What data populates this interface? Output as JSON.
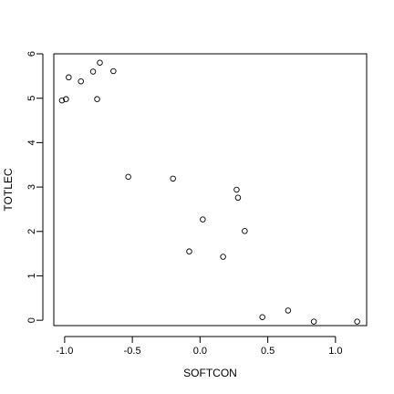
{
  "chart_data": {
    "type": "scatter",
    "title": "",
    "xlabel": "SOFTCON",
    "ylabel": "TOTLEC",
    "xlim": [
      -1.08,
      1.23
    ],
    "ylim": [
      -0.12,
      6.0
    ],
    "xticks": [
      -1.0,
      -0.5,
      0.0,
      0.5,
      1.0
    ],
    "xtick_labels": [
      "-1.0",
      "-0.5",
      "0.0",
      "0.5",
      "1.0"
    ],
    "yticks": [
      0,
      1,
      2,
      3,
      4,
      5,
      6
    ],
    "ytick_labels": [
      "0",
      "1",
      "2",
      "3",
      "4",
      "5",
      "6"
    ],
    "grid": false,
    "marker": "open-circle",
    "colors": {
      "points": "#000000",
      "axes": "#000000",
      "background": "#ffffff"
    },
    "points": [
      {
        "x": -1.02,
        "y": 4.95
      },
      {
        "x": -0.99,
        "y": 4.98
      },
      {
        "x": -0.97,
        "y": 5.47
      },
      {
        "x": -0.88,
        "y": 5.38
      },
      {
        "x": -0.79,
        "y": 5.6
      },
      {
        "x": -0.76,
        "y": 4.98
      },
      {
        "x": -0.74,
        "y": 5.8
      },
      {
        "x": -0.64,
        "y": 5.61
      },
      {
        "x": -0.53,
        "y": 3.23
      },
      {
        "x": -0.2,
        "y": 3.19
      },
      {
        "x": -0.08,
        "y": 1.55
      },
      {
        "x": 0.02,
        "y": 2.27
      },
      {
        "x": 0.17,
        "y": 1.43
      },
      {
        "x": 0.27,
        "y": 2.94
      },
      {
        "x": 0.28,
        "y": 2.76
      },
      {
        "x": 0.33,
        "y": 2.01
      },
      {
        "x": 0.46,
        "y": 0.07
      },
      {
        "x": 0.65,
        "y": 0.22
      },
      {
        "x": 0.84,
        "y": -0.03
      },
      {
        "x": 1.16,
        "y": -0.03
      }
    ]
  }
}
